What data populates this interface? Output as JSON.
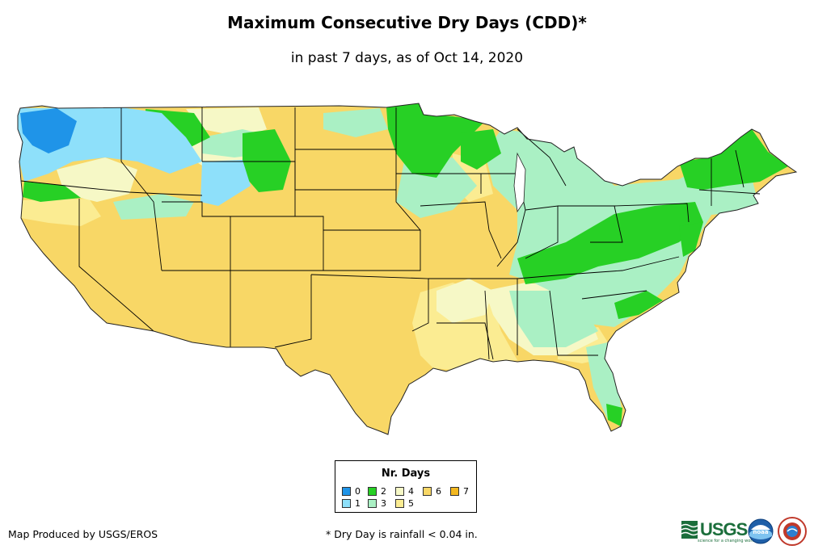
{
  "title": "Maximum Consecutive Dry Days (CDD)*",
  "subtitle": "in past 7 days, as of Oct 14, 2020",
  "legend": {
    "title": "Nr. Days",
    "items": [
      {
        "label": "0",
        "color": "#1f94e8"
      },
      {
        "label": "1",
        "color": "#8ee0fa"
      },
      {
        "label": "2",
        "color": "#27d025"
      },
      {
        "label": "3",
        "color": "#aaf0c4"
      },
      {
        "label": "4",
        "color": "#f6f8c6"
      },
      {
        "label": "5",
        "color": "#fbec92"
      },
      {
        "label": "6",
        "color": "#f8d766"
      },
      {
        "label": "7",
        "color": "#f3b820"
      }
    ]
  },
  "credit": "Map Produced by USGS/EROS",
  "footnote": "* Dry Day is rainfall < 0.04 in.",
  "logos": {
    "usgs": {
      "name": "usgs-logo",
      "text": "USGS",
      "tagline": "science for a changing world"
    },
    "noaa": {
      "name": "noaa-logo",
      "text": "noaa"
    },
    "nws": {
      "name": "nws-logo"
    }
  },
  "colors": {
    "state_border": "#000000",
    "coast": "#333333"
  }
}
